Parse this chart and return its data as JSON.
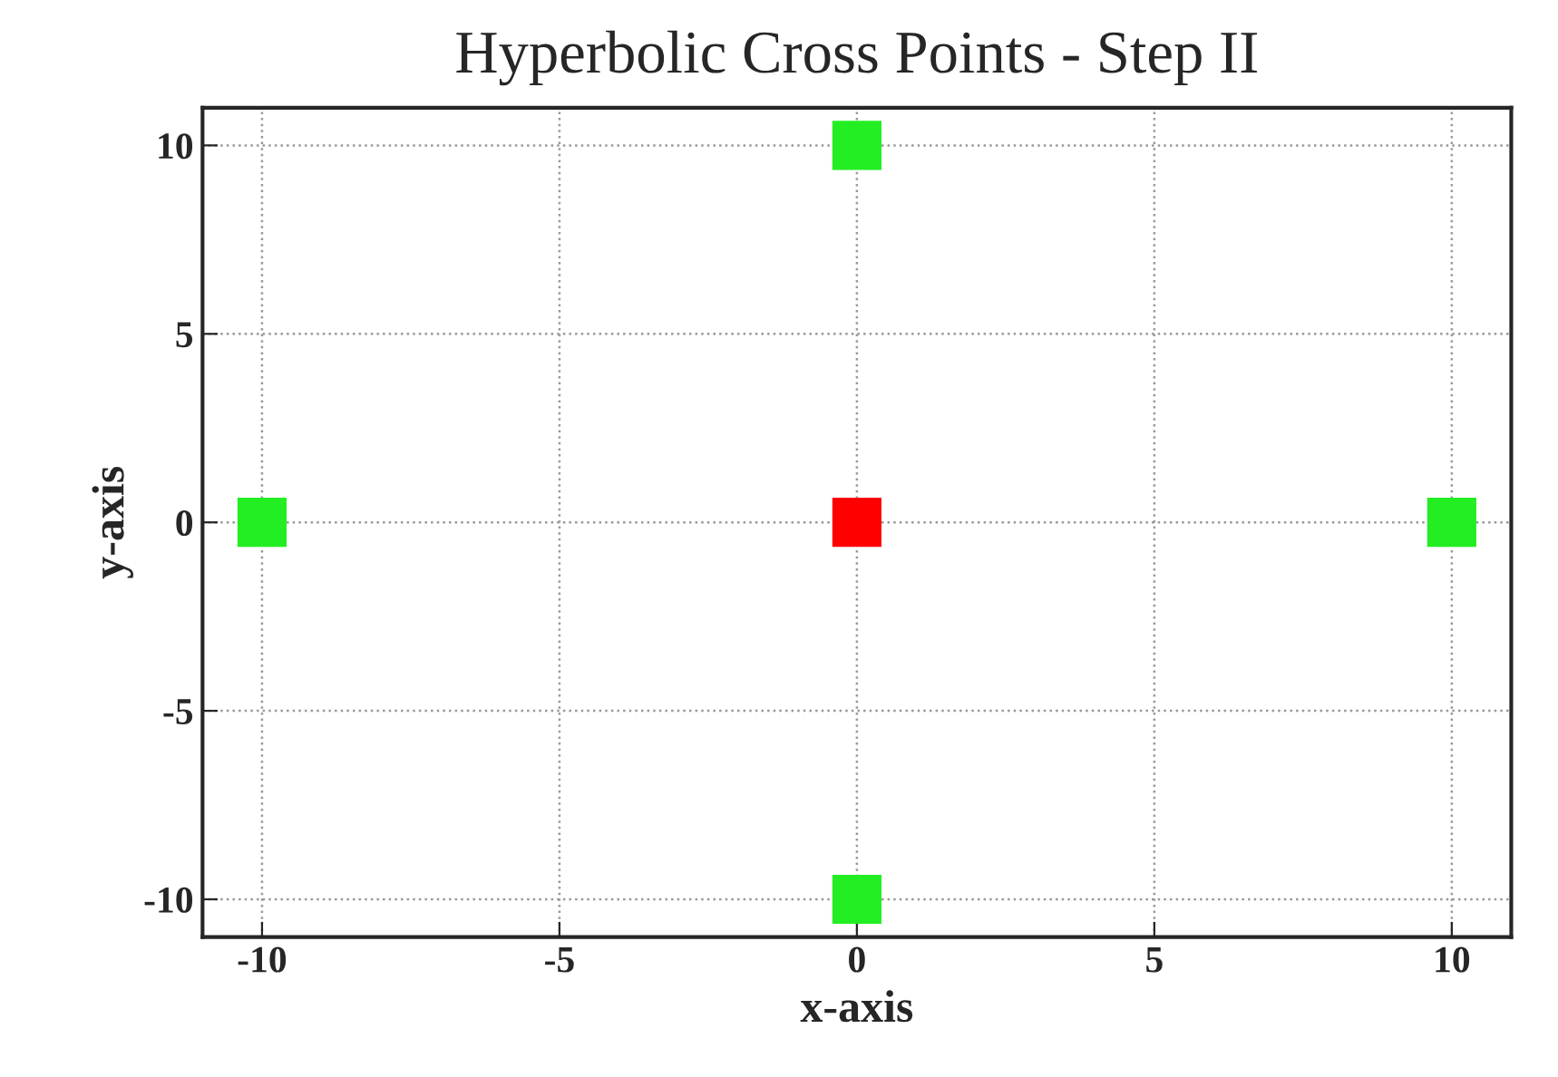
{
  "chart_data": {
    "type": "scatter",
    "title": "Hyperbolic Cross Points - Step II",
    "xlabel": "x-axis",
    "ylabel": "y-axis",
    "series": [
      {
        "color": "#22ee22",
        "x": [
          -10,
          0,
          0,
          10
        ],
        "values": [
          0,
          10,
          -10,
          0
        ]
      },
      {
        "color": "#ff0000",
        "x": [
          0
        ],
        "values": [
          0
        ]
      }
    ],
    "xlim": [
      -11,
      11
    ],
    "ylim": [
      -11,
      11
    ],
    "xticks": [
      -10,
      -5,
      0,
      5,
      10
    ],
    "yticks": [
      -10,
      -5,
      0,
      5,
      10
    ],
    "grid": true,
    "marker": "square",
    "legend": false
  }
}
